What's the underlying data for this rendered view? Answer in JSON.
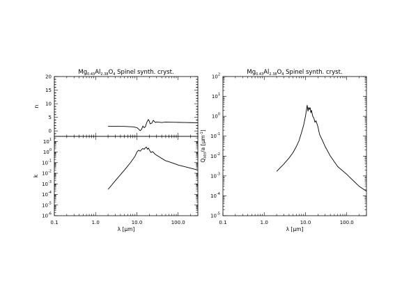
{
  "chart_data": [
    {
      "id": "n",
      "type": "line",
      "title": {
        "base": "Mg",
        "s1": "0.43",
        "mid": "Al",
        "s2": "2.38",
        "end": "O",
        "s3": "4",
        "rest": " Spinel synth. cryst."
      },
      "ylabel": "n",
      "xlabel": "",
      "xscale": "log",
      "yscale": "linear",
      "xlim": [
        0.1,
        300
      ],
      "ylim": [
        -2,
        20
      ],
      "xticks": [
        "0.1",
        "1.0",
        "10.0",
        "100.0"
      ],
      "xticks_labeled": false,
      "yticks": [
        "0",
        "5",
        "10",
        "15",
        "20"
      ],
      "series": [
        {
          "x": [
            2,
            3,
            5,
            8,
            10,
            11,
            12,
            13,
            14,
            15,
            16,
            17,
            18,
            19,
            20,
            21,
            23,
            25,
            28,
            30,
            35,
            40,
            50,
            70,
            100,
            150,
            200,
            300
          ],
          "y": [
            1.7,
            1.7,
            1.65,
            1.5,
            1.2,
            0.7,
            0.1,
            0.6,
            1.8,
            1.2,
            1.5,
            2.7,
            3.6,
            4.2,
            3.6,
            2.6,
            2.9,
            3.9,
            3.1,
            3.3,
            3.2,
            3.1,
            3.25,
            3.2,
            3.15,
            3.1,
            3.05,
            3.0
          ]
        }
      ]
    },
    {
      "id": "k",
      "type": "line",
      "title": "",
      "ylabel": "k",
      "xlabel": {
        "base": "λ [",
        "mu": "μ",
        "end": "m]"
      },
      "xscale": "log",
      "yscale": "log",
      "xlim": [
        0.1,
        300
      ],
      "ylim": [
        1e-06,
        30
      ],
      "xticks": [
        "0.1",
        "1.0",
        "10.0",
        "100.0"
      ],
      "xticks_labeled": true,
      "yticks": [
        "-6",
        "-5",
        "-4",
        "-3",
        "-2",
        "-1",
        "0",
        "1"
      ],
      "series": [
        {
          "x": [
            2,
            3,
            5,
            7,
            9,
            10,
            11,
            12,
            13,
            14,
            15,
            16,
            17,
            18,
            19,
            20,
            22,
            24,
            26,
            28,
            30,
            35,
            40,
            50,
            70,
            100,
            150,
            200,
            300
          ],
          "y": [
            0.0003,
            0.002,
            0.02,
            0.1,
            0.4,
            1.0,
            1.5,
            1.2,
            1.7,
            2.2,
            1.8,
            2.5,
            3.0,
            1.8,
            2.4,
            1.6,
            0.9,
            1.1,
            0.8,
            0.6,
            0.5,
            0.35,
            0.25,
            0.15,
            0.1,
            0.06,
            0.04,
            0.03,
            0.02
          ]
        }
      ]
    },
    {
      "id": "q",
      "type": "line",
      "title": {
        "base": "Mg",
        "s1": "0.43",
        "mid": "Al",
        "s2": "2.38",
        "end": "O",
        "s3": "4",
        "rest": " Spinel synth. cryst."
      },
      "ylabel": {
        "base": "Q",
        "sub": "abs",
        "mid": "/a [",
        "mu": "μ",
        "end": "m",
        "sup": "-1",
        "close": "]"
      },
      "xlabel": {
        "base": "λ [",
        "mu": "μ",
        "end": "m]"
      },
      "xscale": "log",
      "yscale": "log",
      "xlim": [
        0.1,
        300
      ],
      "ylim": [
        1e-05,
        100
      ],
      "xticks": [
        "0.1",
        "1.0",
        "10.0",
        "100.0"
      ],
      "xticks_labeled": true,
      "yticks": [
        "-5",
        "-4",
        "-3",
        "-2",
        "-1",
        "0",
        "1",
        "2"
      ],
      "series": [
        {
          "x": [
            2,
            3,
            4,
            5,
            6,
            7,
            8,
            9,
            10,
            10.5,
            11,
            11.5,
            12,
            12.5,
            13,
            13.5,
            14,
            15,
            16,
            17,
            18,
            20,
            22,
            25,
            30,
            40,
            60,
            100,
            200,
            300
          ],
          "y": [
            0.0017,
            0.004,
            0.008,
            0.015,
            0.03,
            0.06,
            0.15,
            0.35,
            1.0,
            2.0,
            3.6,
            1.8,
            2.8,
            2.2,
            2.7,
            1.5,
            2.0,
            1.0,
            0.8,
            0.5,
            0.6,
            0.3,
            0.12,
            0.07,
            0.03,
            0.01,
            0.003,
            0.0012,
            0.0003,
            0.00017
          ]
        }
      ]
    }
  ]
}
